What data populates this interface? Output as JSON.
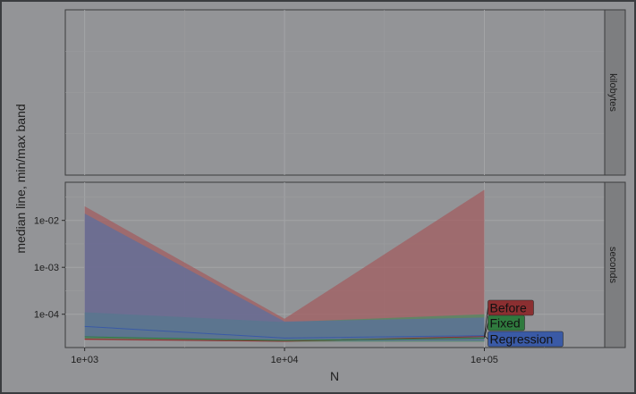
{
  "chart_data": {
    "type": "area",
    "title": "",
    "xlabel": "N",
    "ylabel": "median line, min/max band",
    "x_scale": "log10",
    "y_scale": "log10",
    "x": [
      1000,
      10000,
      100000
    ],
    "x_tick_labels": [
      "1e+03",
      "1e+04",
      "1e+05"
    ],
    "xlim": [
      800,
      400000
    ],
    "facets": [
      {
        "label": "kilobytes",
        "y_tick_labels": [],
        "series": []
      },
      {
        "label": "seconds",
        "ylim": [
          1.95e-05,
          0.065
        ],
        "y_ticks": [
          0.0001,
          0.001,
          0.01
        ],
        "y_tick_labels": [
          "1e-04",
          "1e-03",
          "1e-02"
        ],
        "series": [
          {
            "name": "Before",
            "color": "#a25c5e",
            "label_bg": "#8b2f31",
            "min": [
              2.8e-05,
              2.6e-05,
              2.8e-05
            ],
            "max": [
              0.02,
              8e-05,
              0.045
            ],
            "median": [
              2.95e-05,
              2.65e-05,
              3.35e-05
            ]
          },
          {
            "name": "Fixed",
            "color": "#4b8d62",
            "label_bg": "#2f7a3e",
            "min": [
              3e-05,
              2.6e-05,
              2.6e-05
            ],
            "max": [
              0.00011,
              6.8e-05,
              0.0001
            ],
            "median": [
              3.3e-05,
              2.75e-05,
              3.1e-05
            ]
          },
          {
            "name": "Regression",
            "color": "#5a6fa0",
            "label_bg": "#3a5aa6",
            "min": [
              3.2e-05,
              2.7e-05,
              2.7e-05
            ],
            "max": [
              0.014,
              7e-05,
              8.5e-05
            ],
            "median": [
              5.5e-05,
              3.1e-05,
              3.5e-05
            ]
          }
        ]
      }
    ],
    "grid": true,
    "legend": "direct labels at right end of lines"
  }
}
